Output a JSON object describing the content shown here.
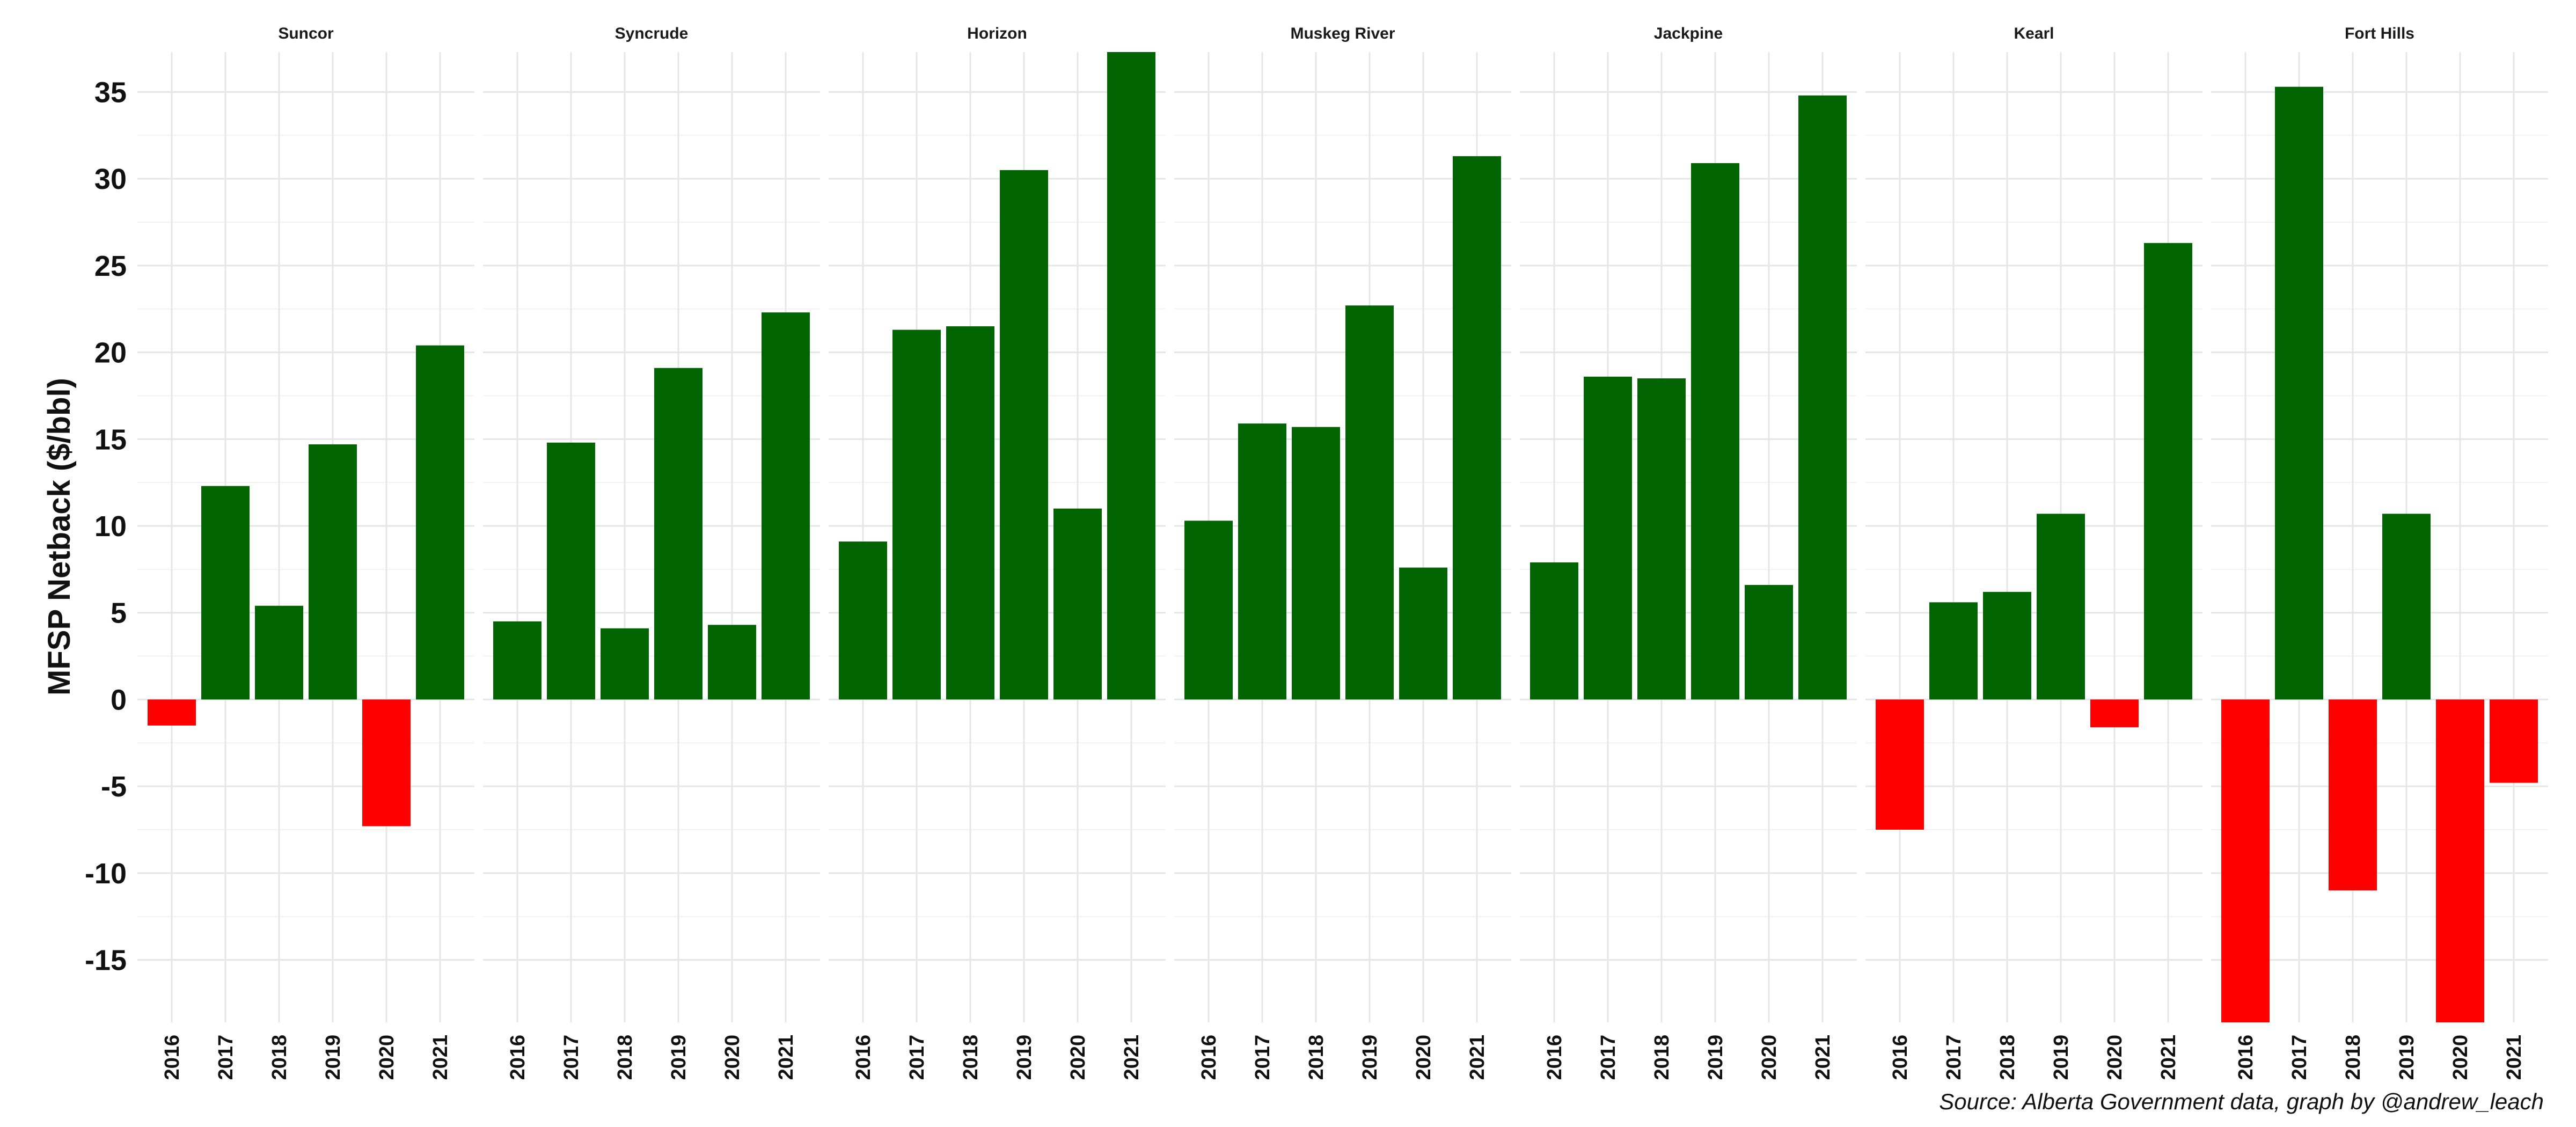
{
  "chart_data": {
    "type": "bar",
    "ylabel": "MFSP Netback ($/bbl)",
    "xlabel": "",
    "ylim": [
      -18.6,
      37.3
    ],
    "yticks": [
      -15,
      -10,
      -5,
      0,
      5,
      10,
      15,
      20,
      25,
      30,
      35
    ],
    "categories": [
      "2016",
      "2017",
      "2018",
      "2019",
      "2020",
      "2021"
    ],
    "caption": "Source: Alberta Government data, graph by @andrew_leach",
    "colors": {
      "positive": "#006400",
      "negative": "#ff0000",
      "grid": "#e6e6e6"
    },
    "grid": true,
    "facets": [
      {
        "name": "Suncor",
        "values": [
          -1.5,
          12.3,
          5.4,
          14.7,
          -7.3,
          20.4
        ]
      },
      {
        "name": "Syncrude",
        "values": [
          4.5,
          14.8,
          4.1,
          19.1,
          4.3,
          22.3
        ]
      },
      {
        "name": "Horizon",
        "values": [
          9.1,
          21.3,
          21.5,
          30.5,
          11.0,
          37.3
        ]
      },
      {
        "name": "Muskeg River",
        "values": [
          10.3,
          15.9,
          15.7,
          22.7,
          7.6,
          31.3
        ]
      },
      {
        "name": "Jackpine",
        "values": [
          7.9,
          18.6,
          18.5,
          30.9,
          6.6,
          34.8
        ]
      },
      {
        "name": "Kearl",
        "values": [
          -7.5,
          5.6,
          6.2,
          10.7,
          -1.6,
          26.3
        ]
      },
      {
        "name": "Fort Hills",
        "values": [
          -18.6,
          35.3,
          -11.0,
          10.7,
          -18.6,
          -4.8
        ]
      }
    ]
  }
}
